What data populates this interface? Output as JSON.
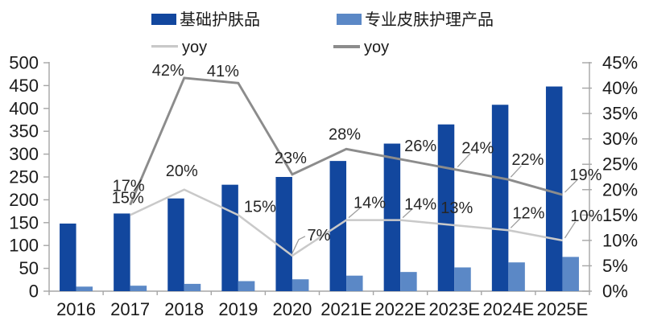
{
  "chart_data": {
    "type": "bar+line",
    "title": "",
    "categories": [
      "2016",
      "2017",
      "2018",
      "2019",
      "2020",
      "2021E",
      "2022E",
      "2023E",
      "2024E",
      "2025E"
    ],
    "left_axis": {
      "min": 0,
      "max": 500,
      "step": 50,
      "tick_labels": [
        "0",
        "50",
        "100",
        "150",
        "200",
        "250",
        "300",
        "350",
        "400",
        "450",
        "500"
      ]
    },
    "right_axis": {
      "min": 0,
      "max": 45,
      "step": 5,
      "tick_labels": [
        "0%",
        "5%",
        "10%",
        "15%",
        "20%",
        "25%",
        "30%",
        "35%",
        "40%",
        "45%"
      ]
    },
    "grid": "off",
    "legend_position": "top",
    "series": [
      {
        "name": "基础护肤品",
        "type": "bar",
        "axis": "left",
        "color": "#12479E",
        "values": [
          148,
          170,
          203,
          233,
          250,
          285,
          323,
          365,
          408,
          448
        ]
      },
      {
        "name": "专业皮肤护理产品",
        "type": "bar",
        "axis": "left",
        "color": "#5B88C6",
        "values": [
          10,
          12,
          16,
          22,
          26,
          34,
          42,
          52,
          63,
          75
        ]
      },
      {
        "name": "yoy",
        "type": "line",
        "axis": "right",
        "color": "#C9C9C9",
        "values": [
          null,
          15,
          20,
          15,
          7,
          14,
          14,
          13,
          12,
          10
        ],
        "point_labels": [
          "",
          "15%",
          "20%",
          "15%",
          "7%",
          "14%",
          "14%",
          "13%",
          "12%",
          "10%"
        ]
      },
      {
        "name": "yoy",
        "type": "line",
        "axis": "right",
        "color": "#8C8C8C",
        "values": [
          null,
          17,
          42,
          41,
          23,
          28,
          26,
          24,
          22,
          19
        ],
        "point_labels": [
          "",
          "17%",
          "42%",
          "41%",
          "23%",
          "28%",
          "26%",
          "24%",
          "22%",
          "19%"
        ]
      }
    ],
    "colors": {
      "bar_primary": "#12479E",
      "bar_secondary": "#5B88C6",
      "line_light": "#C9C9C9",
      "line_dark": "#8C8C8C",
      "axis": "#A6A6A6",
      "text": "#1a1a1a"
    }
  }
}
